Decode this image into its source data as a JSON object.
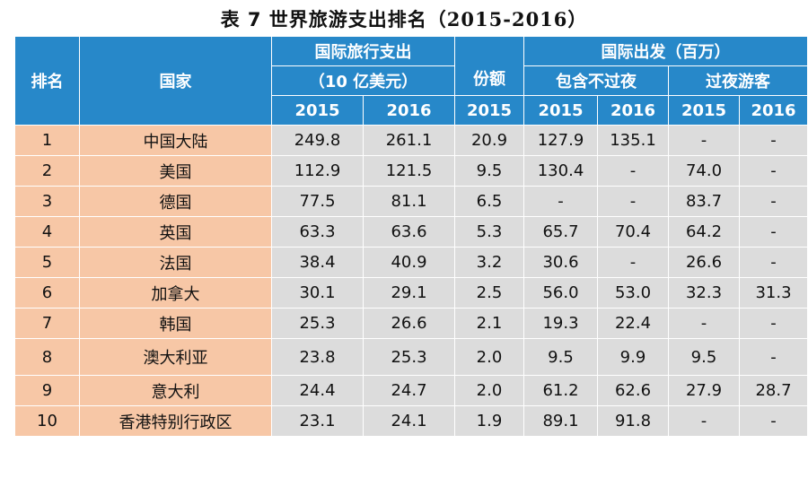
{
  "title": {
    "main": "表 7 世界旅游支出排名（",
    "years": "2015-2016",
    "close": "）"
  },
  "header": {
    "rank": "排名",
    "country": "国家",
    "spend_line1": "国际旅行支出",
    "spend_line2": "（10 亿美元）",
    "share": "份额",
    "departures": "国际出发（百万）",
    "incl_overnight": "包含不过夜",
    "overnight": "过夜游客",
    "years": [
      "2015",
      "2016",
      "2015",
      "2015",
      "2016",
      "2015",
      "2016"
    ]
  },
  "rows": [
    {
      "rank": "1",
      "country": "中国大陆",
      "s2015": "249.8",
      "s2016": "261.1",
      "share": "20.9",
      "i2015": "127.9",
      "i2016": "135.1",
      "o2015": "-",
      "o2016": "-"
    },
    {
      "rank": "2",
      "country": "美国",
      "s2015": "112.9",
      "s2016": "121.5",
      "share": "9.5",
      "i2015": "130.4",
      "i2016": "-",
      "o2015": "74.0",
      "o2016": "-"
    },
    {
      "rank": "3",
      "country": "德国",
      "s2015": "77.5",
      "s2016": "81.1",
      "share": "6.5",
      "i2015": "-",
      "i2016": "-",
      "o2015": "83.7",
      "o2016": "-"
    },
    {
      "rank": "4",
      "country": "英国",
      "s2015": "63.3",
      "s2016": "63.6",
      "share": "5.3",
      "i2015": "65.7",
      "i2016": "70.4",
      "o2015": "64.2",
      "o2016": "-"
    },
    {
      "rank": "5",
      "country": "法国",
      "s2015": "38.4",
      "s2016": "40.9",
      "share": "3.2",
      "i2015": "30.6",
      "i2016": "-",
      "o2015": "26.6",
      "o2016": "-"
    },
    {
      "rank": "6",
      "country": "加拿大",
      "s2015": "30.1",
      "s2016": "29.1",
      "share": "2.5",
      "i2015": "56.0",
      "i2016": "53.0",
      "o2015": "32.3",
      "o2016": "31.3"
    },
    {
      "rank": "7",
      "country": "韩国",
      "s2015": "25.3",
      "s2016": "26.6",
      "share": "2.1",
      "i2015": "19.3",
      "i2016": "22.4",
      "o2015": "-",
      "o2016": "-"
    },
    {
      "rank": "8",
      "country": "澳大利亚",
      "s2015": "23.8",
      "s2016": "25.3",
      "share": "2.0",
      "i2015": "9.5",
      "i2016": "9.9",
      "o2015": "9.5",
      "o2016": "-"
    },
    {
      "rank": "9",
      "country": "意大利",
      "s2015": "24.4",
      "s2016": "24.7",
      "share": "2.0",
      "i2015": "61.2",
      "i2016": "62.6",
      "o2015": "27.9",
      "o2016": "28.7"
    },
    {
      "rank": "10",
      "country": "香港特别行政区",
      "s2015": "23.1",
      "s2016": "24.1",
      "share": "1.9",
      "i2015": "89.1",
      "i2016": "91.8",
      "o2015": "-",
      "o2016": "-"
    }
  ],
  "colors": {
    "header_bg": "#2788c9",
    "rank_country_bg": "#f7c7a6",
    "number_bg": "#dcdcdc"
  }
}
